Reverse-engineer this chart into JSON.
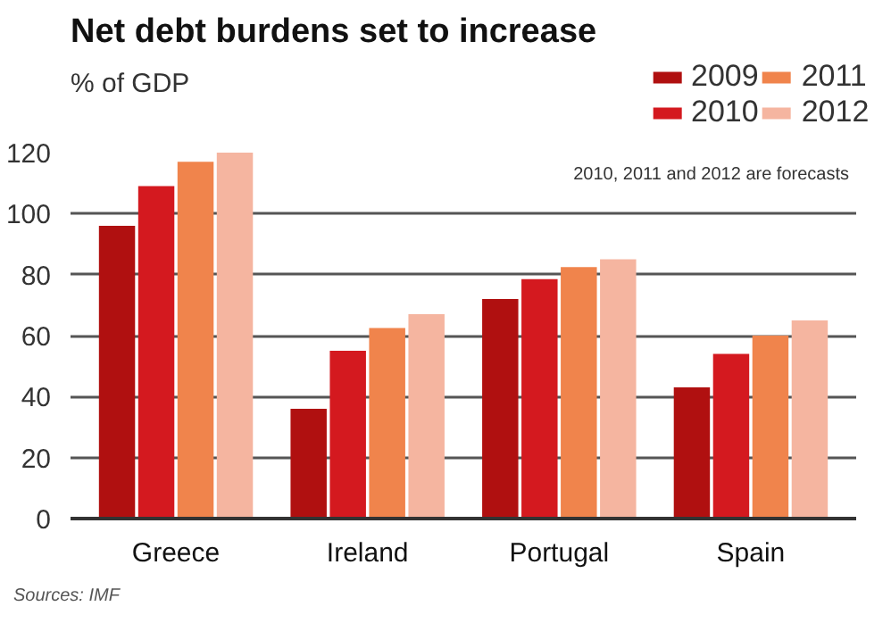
{
  "chart_data": {
    "type": "bar",
    "title": "Net debt burdens set to increase",
    "ylabel": "% of GDP",
    "categories": [
      "Greece",
      "Ireland",
      "Portugal",
      "Spain"
    ],
    "series": [
      {
        "name": "2009",
        "color": "#b01010",
        "values": [
          96,
          36,
          72,
          43
        ]
      },
      {
        "name": "2010",
        "color": "#d4191f",
        "values": [
          109,
          55,
          78.5,
          54
        ]
      },
      {
        "name": "2011",
        "color": "#f0844c",
        "values": [
          117,
          62.5,
          82.5,
          60
        ]
      },
      {
        "name": "2012",
        "color": "#f5b5a0",
        "values": [
          120,
          67,
          85,
          65
        ]
      }
    ],
    "ylim": [
      0,
      120
    ],
    "yticks": [
      0,
      20,
      40,
      60,
      80,
      100,
      120
    ],
    "grid": "y",
    "legend": "top right",
    "annotations": [
      "2010, 2011 and 2012 are forecasts",
      "Sources: IMF"
    ]
  }
}
